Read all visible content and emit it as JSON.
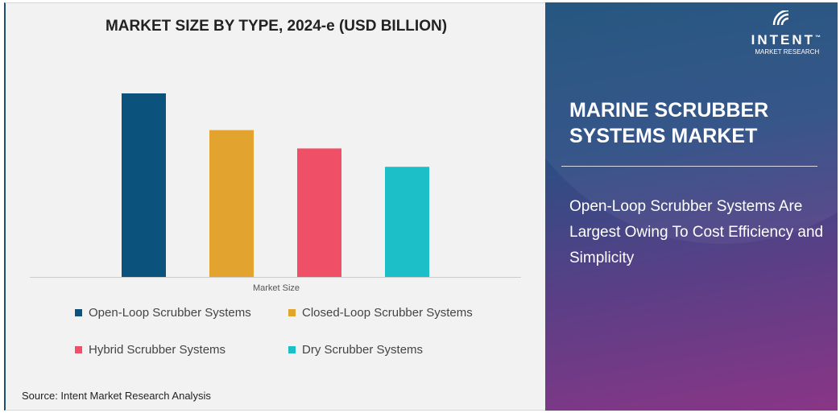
{
  "chart_data": {
    "type": "bar",
    "title": "MARKET SIZE BY TYPE, 2024-e (USD BILLION)",
    "xlabel": "Market Size",
    "ylabel": "",
    "categories": [
      "Open-Loop Scrubber Systems",
      "Closed-Loop Scrubber Systems",
      "Hybrid Scrubber Systems",
      "Dry Scrubber Systems"
    ],
    "values": [
      100,
      80,
      70,
      60
    ],
    "colors": [
      "#0b527d",
      "#e2a42e",
      "#ef4f67",
      "#1cbec7"
    ],
    "ylim": [
      0,
      100
    ],
    "grid": false,
    "legend": "bottom"
  },
  "source": "Source: Intent Market Research Analysis",
  "right_panel": {
    "logo_word": "INTENT",
    "logo_sub": "MARKET RESEARCH",
    "logo_tm": "™",
    "title": "MARINE SCRUBBER SYSTEMS MARKET",
    "description": "Open-Loop Scrubber Systems Are Largest Owing To Cost Efficiency and Simplicity"
  }
}
